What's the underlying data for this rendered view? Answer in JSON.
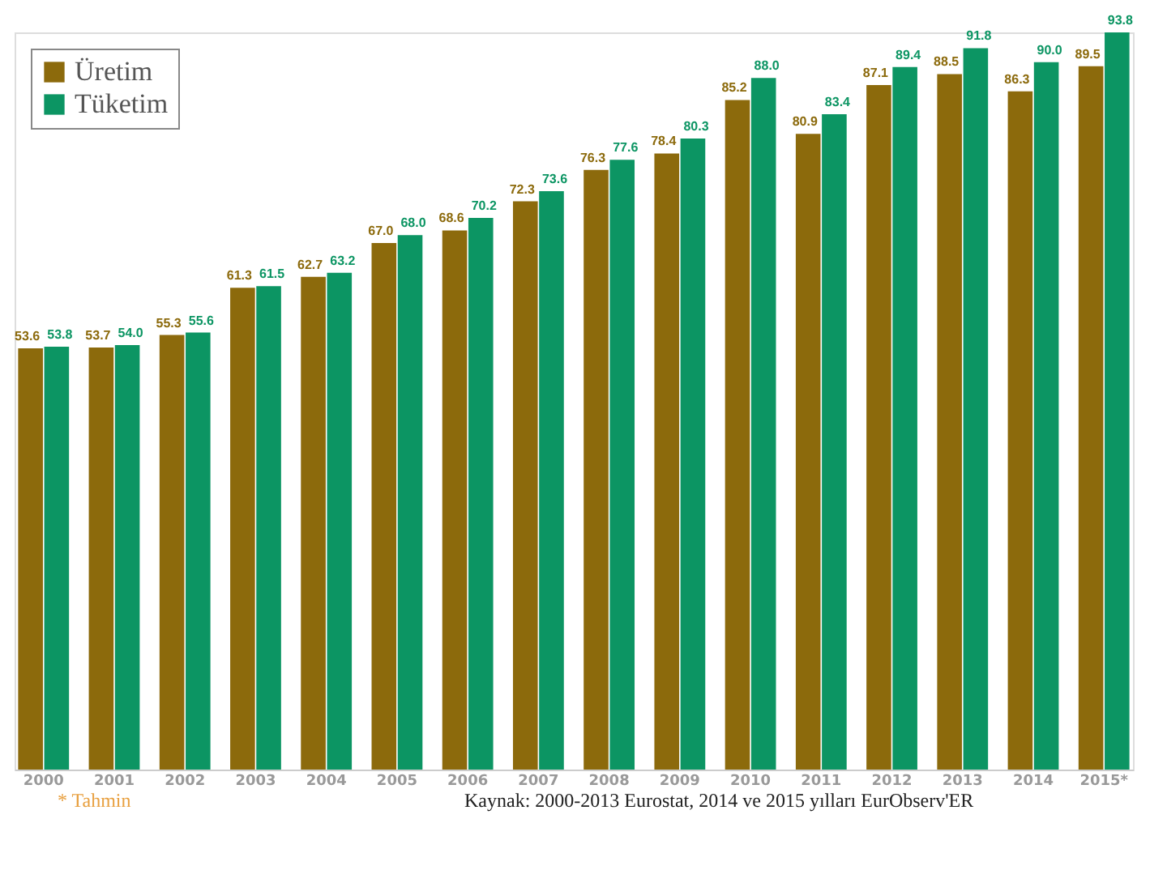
{
  "chart_data": {
    "type": "bar",
    "categories": [
      "2000",
      "2001",
      "2002",
      "2003",
      "2004",
      "2005",
      "2006",
      "2007",
      "2008",
      "2009",
      "2010",
      "2011",
      "2012",
      "2013",
      "2014",
      "2015*"
    ],
    "series": [
      {
        "name": "Üretim",
        "color": "#8c6a0c",
        "values": [
          53.6,
          53.7,
          55.3,
          61.3,
          62.7,
          67.0,
          68.6,
          72.3,
          76.3,
          78.4,
          85.2,
          80.9,
          87.1,
          88.5,
          86.3,
          89.5
        ],
        "value_labels": [
          "53.6",
          "53.7",
          "55.3",
          "61.3",
          "62.7",
          "67.0",
          "68.6",
          "72.3",
          "76.3",
          "78.4",
          "85.2",
          "80.9",
          "87.1",
          "88.5",
          "86.3",
          "89.5"
        ]
      },
      {
        "name": "Tüketim",
        "color": "#0c9563",
        "values": [
          53.8,
          54.0,
          55.6,
          61.5,
          63.2,
          68.0,
          70.2,
          73.6,
          77.6,
          80.3,
          88.0,
          83.4,
          89.4,
          91.8,
          90.0,
          93.8
        ],
        "value_labels": [
          "53.8",
          "54.0",
          "55.6",
          "61.5",
          "63.2",
          "68.0",
          "70.2",
          "73.6",
          "77.6",
          "80.3",
          "88.0",
          "83.4",
          "89.4",
          "91.8",
          "90.0",
          "93.8"
        ]
      }
    ],
    "legend": "top left",
    "grid": false,
    "annotations": [
      "* Tahmin",
      "Kaynak: 2000-2013 Eurostat, 2014 ve 2015 yılları EurObserv'ER"
    ]
  }
}
